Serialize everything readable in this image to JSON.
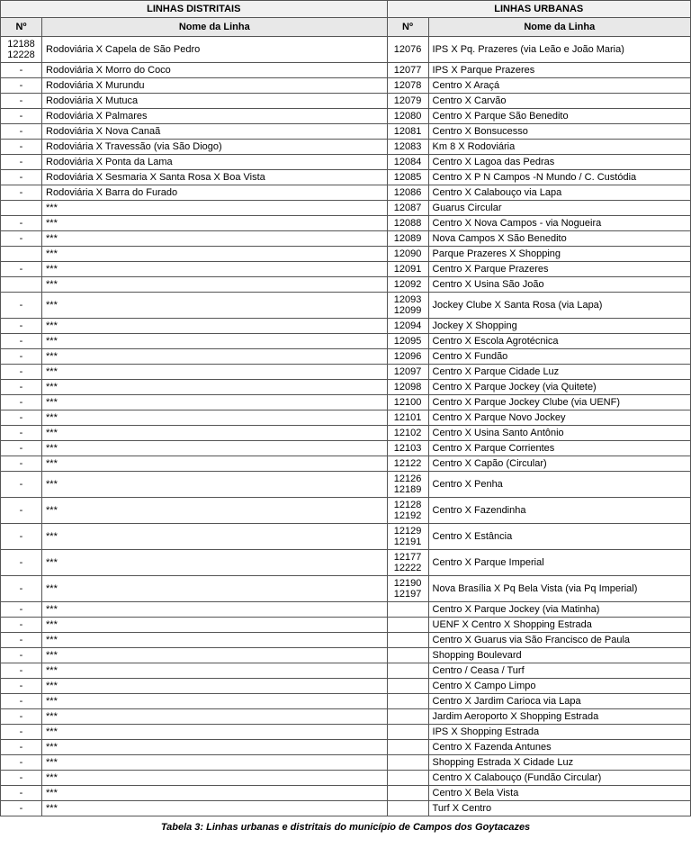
{
  "headers": {
    "section_left": "LINHAS DISTRITAIS",
    "section_right": "LINHAS URBANAS",
    "col_num": "Nº",
    "col_name": "Nome da Linha"
  },
  "rows": [
    {
      "ln": "12188 12228",
      "leftName": "Rodoviária X Capela de São Pedro",
      "rn": "12076",
      "rightName": "IPS X Pq. Prazeres (via Leão e João Maria)"
    },
    {
      "ln": "-",
      "leftName": "Rodoviária X Morro do Coco",
      "rn": "12077",
      "rightName": "IPS X Parque Prazeres"
    },
    {
      "ln": "-",
      "leftName": "Rodoviária X Murundu",
      "rn": "12078",
      "rightName": "Centro X Araçá"
    },
    {
      "ln": "-",
      "leftName": "Rodoviária X Mutuca",
      "rn": "12079",
      "rightName": "Centro X Carvão"
    },
    {
      "ln": "-",
      "leftName": "Rodoviária X Palmares",
      "rn": "12080",
      "rightName": "Centro X Parque São Benedito"
    },
    {
      "ln": "-",
      "leftName": "Rodoviária X Nova Canaã",
      "rn": "12081",
      "rightName": "Centro X Bonsucesso"
    },
    {
      "ln": "-",
      "leftName": "Rodoviária X Travessão (via São Diogo)",
      "rn": "12083",
      "rightName": "Km 8 X Rodoviária"
    },
    {
      "ln": "-",
      "leftName": "Rodoviária X Ponta da Lama",
      "rn": "12084",
      "rightName": "Centro X Lagoa das Pedras"
    },
    {
      "ln": "-",
      "leftName": "Rodoviária X Sesmaria X Santa Rosa X Boa Vista",
      "rn": "12085",
      "rightName": "Centro X P N Campos -N Mundo / C. Custódia"
    },
    {
      "ln": "-",
      "leftName": "Rodoviária X Barra do Furado",
      "rn": "12086",
      "rightName": "Centro X Calabouço via Lapa"
    },
    {
      "ln": "",
      "leftName": "***",
      "rn": "12087",
      "rightName": "Guarus Circular"
    },
    {
      "ln": "-",
      "leftName": "***",
      "rn": "12088",
      "rightName": "Centro X Nova Campos - via Nogueira"
    },
    {
      "ln": "-",
      "leftName": "***",
      "rn": "12089",
      "rightName": "Nova Campos X São Benedito"
    },
    {
      "ln": "",
      "leftName": "***",
      "rn": "12090",
      "rightName": "Parque Prazeres X Shopping"
    },
    {
      "ln": "-",
      "leftName": "***",
      "rn": "12091",
      "rightName": "Centro X Parque Prazeres"
    },
    {
      "ln": "",
      "leftName": "***",
      "rn": "12092",
      "rightName": "Centro X Usina São João"
    },
    {
      "ln": "-",
      "leftName": "***",
      "rn": "12093 12099",
      "rightName": "Jockey Clube X Santa Rosa (via Lapa)"
    },
    {
      "ln": "-",
      "leftName": "***",
      "rn": "12094",
      "rightName": "Jockey X Shopping"
    },
    {
      "ln": "-",
      "leftName": "***",
      "rn": "12095",
      "rightName": "Centro X Escola Agrotécnica"
    },
    {
      "ln": "-",
      "leftName": "***",
      "rn": "12096",
      "rightName": "Centro X Fundão"
    },
    {
      "ln": "-",
      "leftName": "***",
      "rn": "12097",
      "rightName": "Centro X Parque Cidade Luz"
    },
    {
      "ln": "-",
      "leftName": "***",
      "rn": "12098",
      "rightName": "Centro X Parque Jockey (via Quitete)"
    },
    {
      "ln": "-",
      "leftName": "***",
      "rn": "12100",
      "rightName": "Centro X Parque Jockey Clube (via UENF)"
    },
    {
      "ln": "-",
      "leftName": "***",
      "rn": "12101",
      "rightName": "Centro X Parque Novo Jockey"
    },
    {
      "ln": "-",
      "leftName": "***",
      "rn": "12102",
      "rightName": "Centro X Usina Santo Antônio"
    },
    {
      "ln": "-",
      "leftName": "***",
      "rn": "12103",
      "rightName": "Centro X Parque Corrientes"
    },
    {
      "ln": "-",
      "leftName": "***",
      "rn": "12122",
      "rightName": "Centro X Capão (Circular)"
    },
    {
      "ln": "-",
      "leftName": "***",
      "rn": "12126 12189",
      "rightName": "Centro X Penha"
    },
    {
      "ln": "-",
      "leftName": "***",
      "rn": "12128 12192",
      "rightName": "Centro X Fazendinha"
    },
    {
      "ln": "-",
      "leftName": "***",
      "rn": "12129 12191",
      "rightName": "Centro X Estância"
    },
    {
      "ln": "-",
      "leftName": "***",
      "rn": "12177 12222",
      "rightName": "Centro X Parque Imperial"
    },
    {
      "ln": "-",
      "leftName": "***",
      "rn": "12190 12197",
      "rightName": "Nova Brasília X Pq Bela Vista (via Pq Imperial)"
    },
    {
      "ln": "-",
      "leftName": "***",
      "rn": "",
      "rightName": "Centro X Parque Jockey (via Matinha)"
    },
    {
      "ln": "-",
      "leftName": "***",
      "rn": "",
      "rightName": "UENF X Centro X Shopping Estrada"
    },
    {
      "ln": "-",
      "leftName": "***",
      "rn": "",
      "rightName": "Centro X Guarus via São Francisco de Paula"
    },
    {
      "ln": "-",
      "leftName": "***",
      "rn": "",
      "rightName": "Shopping Boulevard"
    },
    {
      "ln": "-",
      "leftName": "***",
      "rn": "",
      "rightName": "Centro / Ceasa / Turf"
    },
    {
      "ln": "-",
      "leftName": "***",
      "rn": "",
      "rightName": "Centro X Campo Limpo"
    },
    {
      "ln": "-",
      "leftName": "***",
      "rn": "",
      "rightName": "Centro X Jardim Carioca via Lapa"
    },
    {
      "ln": "-",
      "leftName": "***",
      "rn": "",
      "rightName": "Jardim Aeroporto X Shopping Estrada"
    },
    {
      "ln": "-",
      "leftName": "***",
      "rn": "",
      "rightName": "IPS X Shopping Estrada"
    },
    {
      "ln": "-",
      "leftName": "***",
      "rn": "",
      "rightName": "Centro X Fazenda Antunes"
    },
    {
      "ln": "-",
      "leftName": "***",
      "rn": "",
      "rightName": "Shopping Estrada X Cidade Luz"
    },
    {
      "ln": "-",
      "leftName": "***",
      "rn": "",
      "rightName": "Centro X Calabouço (Fundão Circular)"
    },
    {
      "ln": "-",
      "leftName": "***",
      "rn": "",
      "rightName": "Centro X Bela Vista"
    },
    {
      "ln": "-",
      "leftName": "***",
      "rn": "",
      "rightName": "Turf X Centro"
    }
  ],
  "caption": "Tabela 3: Linhas urbanas e distritais do município de Campos dos Goytacazes"
}
